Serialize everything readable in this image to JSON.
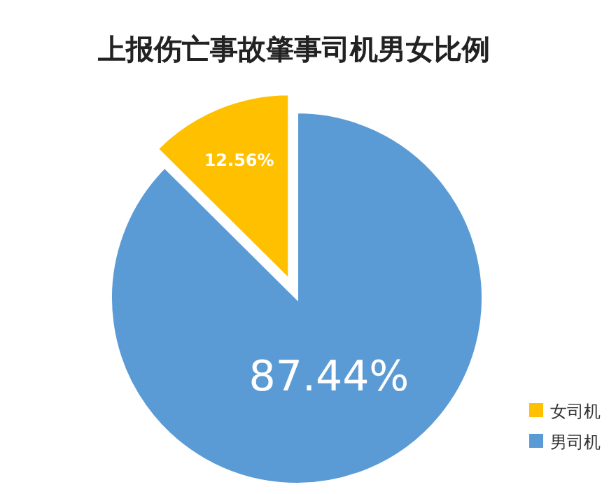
{
  "chart_data": {
    "type": "pie",
    "title": "上报伤亡事故肇事司机男女比例",
    "categories": [
      "女司机",
      "男司机"
    ],
    "values": [
      12.56,
      87.44
    ],
    "colors": [
      "#ffc000",
      "#5b9bd5"
    ],
    "value_labels": [
      "12.56%",
      "87.44%"
    ],
    "legend": "bottom right"
  }
}
